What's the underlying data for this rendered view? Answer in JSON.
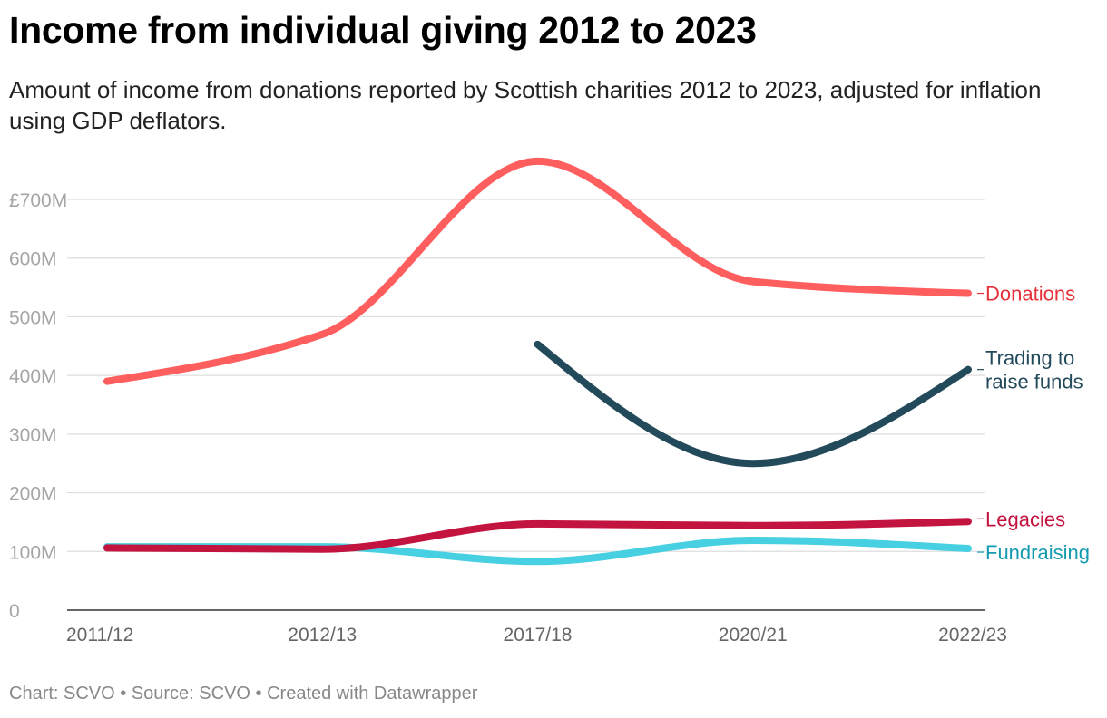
{
  "chart_data": {
    "type": "line",
    "title": "Income from individual giving 2012 to 2023",
    "subtitle": "Amount of income from donations reported by Scottish charities 2012 to 2023, adjusted for inflation using GDP deflators.",
    "footer": "Chart: SCVO • Source: SCVO • Created with Datawrapper",
    "categories": [
      "2011/12",
      "2012/13",
      "2017/18",
      "2020/21",
      "2022/23"
    ],
    "ylim": [
      0,
      700
    ],
    "y_ticks": [
      {
        "value": 0,
        "label": "0"
      },
      {
        "value": 100,
        "label": "100M"
      },
      {
        "value": 200,
        "label": "200M"
      },
      {
        "value": 300,
        "label": "300M"
      },
      {
        "value": 400,
        "label": "400M"
      },
      {
        "value": 500,
        "label": "500M"
      },
      {
        "value": 600,
        "label": "600M"
      },
      {
        "value": 700,
        "label": "£700M"
      }
    ],
    "series": [
      {
        "name": "Donations",
        "label_lines": [
          "Donations"
        ],
        "color": "#ff5e5e",
        "label_color": "#e5303a",
        "values": [
          390,
          470,
          765,
          560,
          540
        ]
      },
      {
        "name": "Trading to raise funds",
        "label_lines": [
          "Trading to",
          "raise funds"
        ],
        "color": "#234a5a",
        "label_color": "#234a5a",
        "values": [
          null,
          null,
          453,
          250,
          410
        ]
      },
      {
        "name": "Legacies",
        "label_lines": [
          "Legacies"
        ],
        "color": "#c3143f",
        "label_color": "#c3143f",
        "values": [
          106,
          104,
          147,
          144,
          151
        ]
      },
      {
        "name": "Fundraising",
        "label_lines": [
          "Fundraising"
        ],
        "color": "#47cfe2",
        "label_color": "#159bb0",
        "values": [
          108,
          108,
          83,
          119,
          105
        ]
      }
    ]
  }
}
